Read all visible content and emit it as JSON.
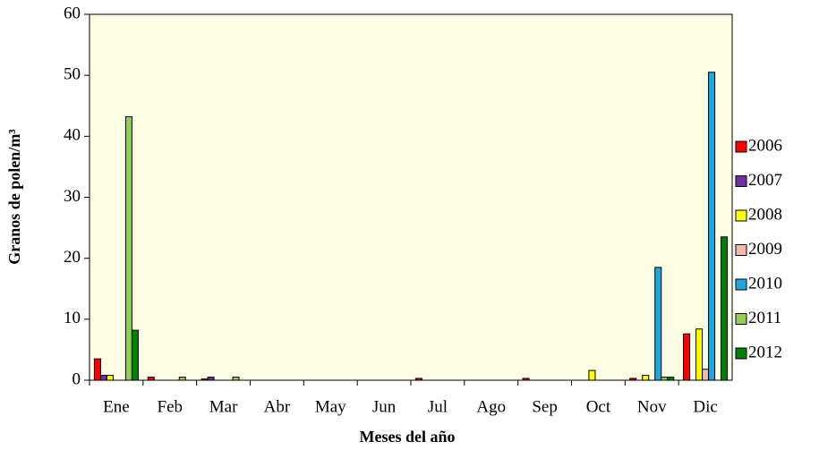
{
  "chart_data": {
    "type": "bar",
    "x_label": "Meses del año",
    "y_label": "Granos de polen/m³",
    "categories": [
      "Ene",
      "Feb",
      "Mar",
      "Abr",
      "May",
      "Jun",
      "Jul",
      "Ago",
      "Sep",
      "Oct",
      "Nov",
      "Dic"
    ],
    "series": [
      {
        "name": "2006",
        "color": "#ff0000",
        "values": [
          3.5,
          0.5,
          0.2,
          0,
          0,
          0,
          0.3,
          0,
          0.3,
          0,
          0.3,
          7.6
        ]
      },
      {
        "name": "2007",
        "color": "#7030a0",
        "values": [
          0.8,
          0,
          0.5,
          0,
          0,
          0,
          0,
          0,
          0,
          0,
          0,
          0
        ]
      },
      {
        "name": "2008",
        "color": "#ffff00",
        "values": [
          0.8,
          0,
          0,
          0,
          0,
          0,
          0,
          0,
          0,
          1.6,
          0.8,
          8.4
        ]
      },
      {
        "name": "2009",
        "color": "#f4b8b0",
        "values": [
          0,
          0,
          0,
          0,
          0,
          0,
          0,
          0,
          0,
          0,
          0,
          1.8
        ]
      },
      {
        "name": "2010",
        "color": "#1ea7e1",
        "values": [
          0,
          0,
          0,
          0,
          0,
          0,
          0,
          0,
          0,
          0,
          18.5,
          50.5
        ]
      },
      {
        "name": "2011",
        "color": "#92d050",
        "values": [
          43.2,
          0.5,
          0.5,
          0,
          0,
          0,
          0,
          0,
          0,
          0,
          0.5,
          0
        ]
      },
      {
        "name": "2012",
        "color": "#008000",
        "values": [
          8.2,
          0,
          0,
          0,
          0,
          0,
          0,
          0,
          0,
          0,
          0.5,
          23.5
        ]
      }
    ],
    "ylim": [
      0,
      60
    ],
    "yticks": [
      0,
      10,
      20,
      30,
      40,
      50,
      60
    ],
    "background": "#fdfde3",
    "legend": "right"
  }
}
